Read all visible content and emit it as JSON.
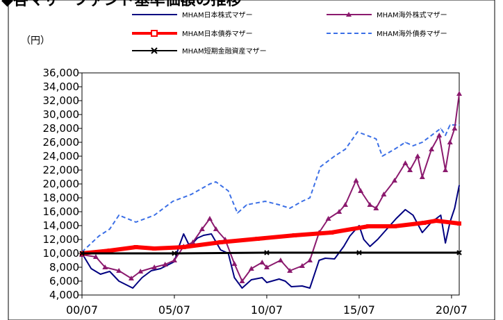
{
  "header": {
    "title_fragment": "◆各マザーファンド基準価額の推移"
  },
  "chart_data": {
    "type": "line",
    "title": "",
    "ylabel": "（円）",
    "xlabel": "",
    "ylim": [
      4000,
      36000
    ],
    "y_ticks": [
      4000,
      6000,
      8000,
      10000,
      12000,
      14000,
      16000,
      18000,
      20000,
      22000,
      24000,
      26000,
      28000,
      30000,
      32000,
      34000,
      36000
    ],
    "y_tick_labels": [
      "4,000",
      "6,000",
      "8,000",
      "10,000",
      "12,000",
      "14,000",
      "16,000",
      "18,000",
      "20,000",
      "22,000",
      "24,000",
      "26,000",
      "28,000",
      "30,000",
      "32,000",
      "34,000",
      "36,000"
    ],
    "x_range": [
      "2000-07",
      "2020-12"
    ],
    "x_ticks": [
      "2000-07",
      "2005-07",
      "2010-07",
      "2015-07",
      "2020-07"
    ],
    "x_tick_labels": [
      "00/07",
      "05/07",
      "10/07",
      "15/07",
      "20/07"
    ],
    "grid": false,
    "legend_position": "top",
    "series": [
      {
        "name": "MHAM日本株式マザー",
        "color": "#000080",
        "style": "solid",
        "marker": "none",
        "x": [
          "2000-07",
          "2001-01",
          "2001-07",
          "2002-01",
          "2002-07",
          "2003-04",
          "2003-10",
          "2004-04",
          "2004-10",
          "2005-07",
          "2005-10",
          "2006-01",
          "2006-05",
          "2006-10",
          "2007-02",
          "2007-07",
          "2008-01",
          "2008-06",
          "2008-10",
          "2009-03",
          "2009-09",
          "2010-04",
          "2010-07",
          "2011-03",
          "2011-07",
          "2011-11",
          "2012-06",
          "2012-11",
          "2013-05",
          "2013-09",
          "2014-03",
          "2014-09",
          "2015-01",
          "2015-07",
          "2015-10",
          "2016-02",
          "2016-07",
          "2017-01",
          "2017-07",
          "2018-01",
          "2018-06",
          "2018-12",
          "2019-06",
          "2019-12",
          "2020-03",
          "2020-06",
          "2020-09",
          "2020-12"
        ],
        "values": [
          10000,
          7800,
          7000,
          7400,
          6000,
          5000,
          6500,
          7500,
          7800,
          8800,
          11000,
          12800,
          11000,
          12200,
          12600,
          12800,
          10500,
          10000,
          6500,
          5000,
          6200,
          6500,
          5800,
          6300,
          6000,
          5200,
          5300,
          5000,
          9000,
          9300,
          9200,
          11000,
          12500,
          14000,
          12000,
          11000,
          12000,
          13500,
          15000,
          16300,
          15500,
          13000,
          14500,
          15500,
          11500,
          14500,
          16500,
          19800
        ]
      },
      {
        "name": "MHAM海外株式マザー",
        "color": "#8B1A6E",
        "style": "solid",
        "marker": "triangle",
        "x": [
          "2000-07",
          "2001-04",
          "2001-10",
          "2002-07",
          "2003-03",
          "2003-09",
          "2004-06",
          "2005-01",
          "2005-07",
          "2006-01",
          "2006-07",
          "2007-01",
          "2007-06",
          "2007-10",
          "2008-04",
          "2008-10",
          "2009-03",
          "2009-09",
          "2010-04",
          "2010-07",
          "2011-04",
          "2011-10",
          "2012-06",
          "2012-11",
          "2013-05",
          "2013-11",
          "2014-06",
          "2014-10",
          "2015-05",
          "2015-08",
          "2016-02",
          "2016-06",
          "2016-11",
          "2017-06",
          "2018-01",
          "2018-04",
          "2018-09",
          "2018-12",
          "2019-06",
          "2019-11",
          "2020-03",
          "2020-06",
          "2020-09",
          "2020-12"
        ],
        "values": [
          9800,
          9500,
          8000,
          7500,
          6400,
          7400,
          8000,
          8400,
          9000,
          11000,
          11600,
          13500,
          15000,
          13500,
          12000,
          8500,
          6000,
          7800,
          8700,
          8000,
          9000,
          7500,
          8200,
          9000,
          13000,
          15000,
          16000,
          17000,
          20500,
          19000,
          17000,
          16500,
          18500,
          20500,
          23000,
          22000,
          24000,
          21000,
          25000,
          27000,
          22000,
          26000,
          28000,
          33000
        ]
      },
      {
        "name": "MHAM日本債券マザー",
        "color": "#FF0000",
        "style": "solid",
        "marker": "square",
        "x": [
          "2000-07",
          "2002-01",
          "2003-06",
          "2004-06",
          "2006-01",
          "2008-01",
          "2010-01",
          "2012-01",
          "2014-01",
          "2016-01",
          "2017-06",
          "2019-01",
          "2019-09",
          "2020-12"
        ],
        "values": [
          10000,
          10400,
          10900,
          10700,
          10900,
          11600,
          12100,
          12600,
          13000,
          13900,
          13900,
          14400,
          14700,
          14300
        ]
      },
      {
        "name": "MHAM海外債券マザー",
        "color": "#3B6FE6",
        "style": "dashed",
        "marker": "none",
        "x": [
          "2000-07",
          "2001-06",
          "2002-01",
          "2002-07",
          "2003-06",
          "2004-06",
          "2005-06",
          "2006-06",
          "2007-06",
          "2007-10",
          "2008-06",
          "2008-12",
          "2009-06",
          "2010-06",
          "2011-03",
          "2011-10",
          "2012-06",
          "2012-11",
          "2013-06",
          "2014-03",
          "2014-10",
          "2015-06",
          "2016-06",
          "2016-10",
          "2017-06",
          "2018-01",
          "2018-06",
          "2018-12",
          "2019-06",
          "2019-12",
          "2020-03",
          "2020-06",
          "2020-12"
        ],
        "values": [
          10200,
          12500,
          13500,
          15500,
          14500,
          15500,
          17500,
          18500,
          20000,
          20300,
          19000,
          15800,
          17000,
          17500,
          17000,
          16500,
          17500,
          18000,
          22500,
          24000,
          25000,
          27500,
          26500,
          24000,
          25000,
          26000,
          25500,
          26000,
          27000,
          28000,
          27000,
          28500,
          28500
        ]
      },
      {
        "name": "MHAM短期金融資産マザー",
        "color": "#000000",
        "style": "solid",
        "marker": "x",
        "x": [
          "2000-07",
          "2005-07",
          "2010-07",
          "2015-07",
          "2020-12"
        ],
        "values": [
          10000,
          10000,
          10100,
          10100,
          10100
        ]
      }
    ]
  }
}
